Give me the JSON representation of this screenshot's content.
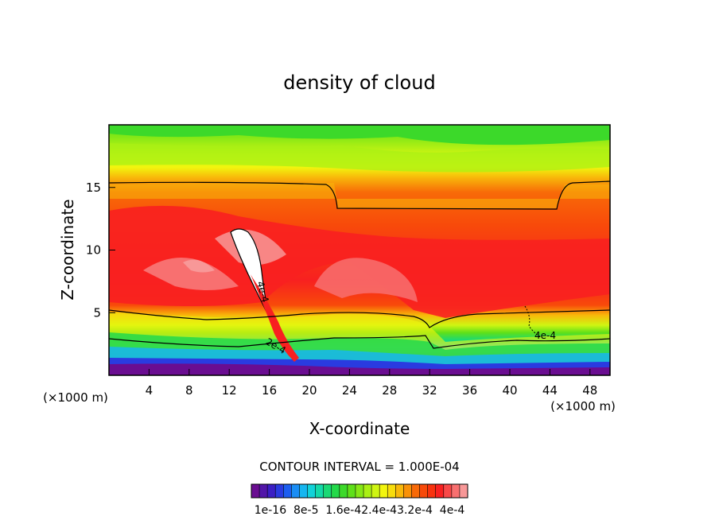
{
  "chart_data": {
    "type": "heatmap",
    "title": "density of cloud",
    "xlabel": "X-coordinate",
    "ylabel": "Z-coordinate",
    "x_unit": "(×1000 m)",
    "y_unit": "(×1000 m)",
    "xlim": [
      0,
      50
    ],
    "ylim": [
      0,
      20
    ],
    "x_ticks": [
      "4",
      "8",
      "12",
      "16",
      "20",
      "24",
      "28",
      "32",
      "36",
      "40",
      "44",
      "48"
    ],
    "y_ticks": [
      "5",
      "10",
      "15"
    ],
    "contour_interval": "CONTOUR INTERVAL = 1.000E-04",
    "contour_labels": [
      "4e-4",
      "2e-4",
      "4e-4"
    ],
    "colorbar_labels": [
      "1e-16",
      "8e-5",
      "1.6e-4",
      "2.4e-4",
      "3.2e-4",
      "4e-4"
    ],
    "colorbar_text": "1e-16  8e-5  1.6e-42.4e-43.2e-4  4e-4",
    "colors": {
      "levels": [
        "#6a0d91",
        "#5216a8",
        "#3b1fc4",
        "#2a3be0",
        "#1d5ef0",
        "#1a8df5",
        "#16b6f0",
        "#12d2d8",
        "#14d9a8",
        "#1ad975",
        "#23d94a",
        "#3cd92a",
        "#5fe019",
        "#86e816",
        "#aaf014",
        "#cff512",
        "#f2f50e",
        "#f8dd0c",
        "#f8b80a",
        "#f89108",
        "#f86a08",
        "#f84a0a",
        "#f8320e",
        "#f82020",
        "#f84848",
        "#f87070",
        "#f89898"
      ],
      "highlight": "#ffffff"
    }
  }
}
